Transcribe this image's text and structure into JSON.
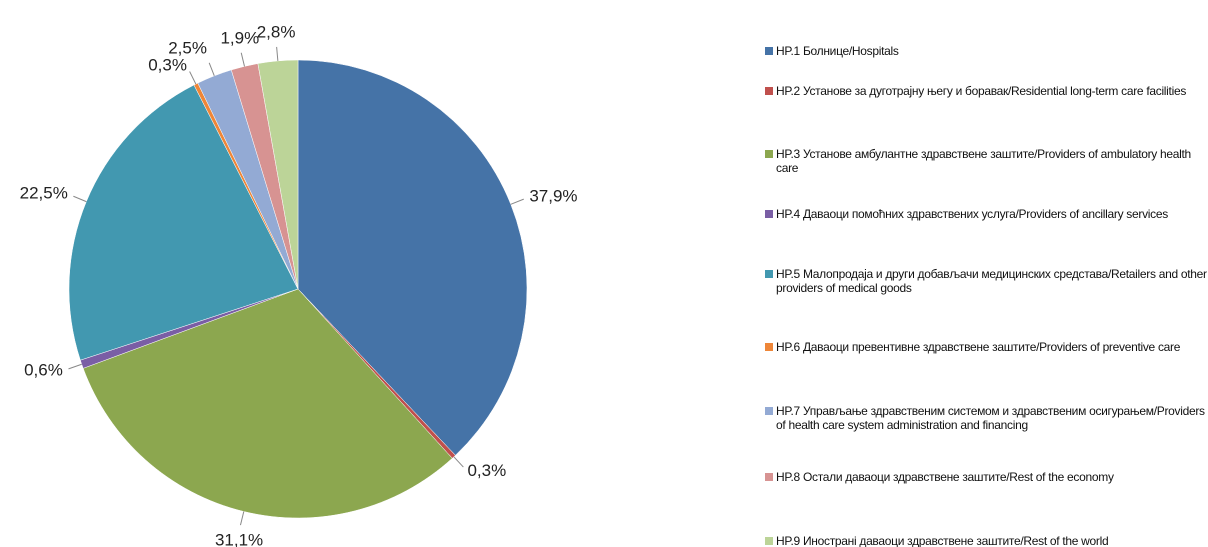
{
  "chart_data": {
    "type": "pie",
    "categories": [
      "HP.1   Болнице/Hospitals",
      "HP.2   Установе за дуготрајну његу и боравак/Residential long-term care facilities",
      "HP.3   Установе амбулантне здравствене заштите/Providers of ambulatory health care",
      "HP.4   Даваоци помоћних здравствених услуга/Providers of ancillary services",
      "HP.5   Малопродаја и други добављачи медицинских средстава/Retailers and other providers of medical goods",
      "HP.6   Даваоци превентивне здравствене заштите/Providers of preventive care",
      "HP.7   Управљање здравственим системом и здравственим осигурањем/Providers of health care system administration and financing",
      "HP.8   Остали даваоци здравствене заштите/Rest of the economy",
      "HP.9   Иностранi даваоци здравствене заштите/Rest of the world"
    ],
    "values": [
      37.9,
      0.3,
      31.1,
      0.6,
      22.5,
      0.3,
      2.5,
      1.9,
      2.8
    ],
    "value_labels": [
      "37,9%",
      "0,3%",
      "31,1%",
      "0,6%",
      "22,5%",
      "0,3%",
      "2,5%",
      "1,9%",
      "2,8%"
    ],
    "colors": [
      "#4573a7",
      "#c0504d",
      "#8ca74f",
      "#7a5ea5",
      "#4298b0",
      "#ee8638",
      "#93aad4",
      "#d79392",
      "#bcd498"
    ],
    "legend": "right"
  }
}
